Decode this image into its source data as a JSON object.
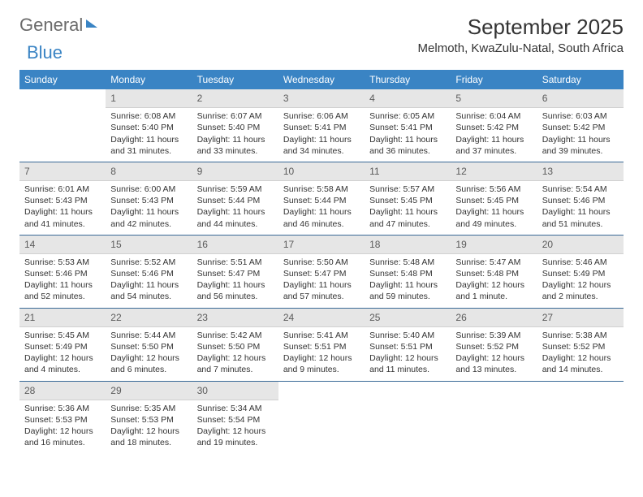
{
  "colors": {
    "brand_blue": "#3a84c4",
    "header_text": "#6b6b6b",
    "daynum_bg": "#e6e6e6",
    "daynum_text": "#5b5b5b",
    "week_divider": "#3a6a97",
    "body_text": "#333333",
    "background": "#ffffff"
  },
  "typography": {
    "title_fontsize_pt": 20,
    "location_fontsize_pt": 12,
    "th_fontsize_pt": 9,
    "cell_fontsize_pt": 8
  },
  "logo": {
    "word1": "General",
    "word2": "Blue"
  },
  "title": "September 2025",
  "location": "Melmoth, KwaZulu-Natal, South Africa",
  "weekdays": [
    "Sunday",
    "Monday",
    "Tuesday",
    "Wednesday",
    "Thursday",
    "Friday",
    "Saturday"
  ],
  "weeks": [
    [
      null,
      {
        "n": "1",
        "sunrise": "Sunrise: 6:08 AM",
        "sunset": "Sunset: 5:40 PM",
        "day1": "Daylight: 11 hours",
        "day2": "and 31 minutes."
      },
      {
        "n": "2",
        "sunrise": "Sunrise: 6:07 AM",
        "sunset": "Sunset: 5:40 PM",
        "day1": "Daylight: 11 hours",
        "day2": "and 33 minutes."
      },
      {
        "n": "3",
        "sunrise": "Sunrise: 6:06 AM",
        "sunset": "Sunset: 5:41 PM",
        "day1": "Daylight: 11 hours",
        "day2": "and 34 minutes."
      },
      {
        "n": "4",
        "sunrise": "Sunrise: 6:05 AM",
        "sunset": "Sunset: 5:41 PM",
        "day1": "Daylight: 11 hours",
        "day2": "and 36 minutes."
      },
      {
        "n": "5",
        "sunrise": "Sunrise: 6:04 AM",
        "sunset": "Sunset: 5:42 PM",
        "day1": "Daylight: 11 hours",
        "day2": "and 37 minutes."
      },
      {
        "n": "6",
        "sunrise": "Sunrise: 6:03 AM",
        "sunset": "Sunset: 5:42 PM",
        "day1": "Daylight: 11 hours",
        "day2": "and 39 minutes."
      }
    ],
    [
      {
        "n": "7",
        "sunrise": "Sunrise: 6:01 AM",
        "sunset": "Sunset: 5:43 PM",
        "day1": "Daylight: 11 hours",
        "day2": "and 41 minutes."
      },
      {
        "n": "8",
        "sunrise": "Sunrise: 6:00 AM",
        "sunset": "Sunset: 5:43 PM",
        "day1": "Daylight: 11 hours",
        "day2": "and 42 minutes."
      },
      {
        "n": "9",
        "sunrise": "Sunrise: 5:59 AM",
        "sunset": "Sunset: 5:44 PM",
        "day1": "Daylight: 11 hours",
        "day2": "and 44 minutes."
      },
      {
        "n": "10",
        "sunrise": "Sunrise: 5:58 AM",
        "sunset": "Sunset: 5:44 PM",
        "day1": "Daylight: 11 hours",
        "day2": "and 46 minutes."
      },
      {
        "n": "11",
        "sunrise": "Sunrise: 5:57 AM",
        "sunset": "Sunset: 5:45 PM",
        "day1": "Daylight: 11 hours",
        "day2": "and 47 minutes."
      },
      {
        "n": "12",
        "sunrise": "Sunrise: 5:56 AM",
        "sunset": "Sunset: 5:45 PM",
        "day1": "Daylight: 11 hours",
        "day2": "and 49 minutes."
      },
      {
        "n": "13",
        "sunrise": "Sunrise: 5:54 AM",
        "sunset": "Sunset: 5:46 PM",
        "day1": "Daylight: 11 hours",
        "day2": "and 51 minutes."
      }
    ],
    [
      {
        "n": "14",
        "sunrise": "Sunrise: 5:53 AM",
        "sunset": "Sunset: 5:46 PM",
        "day1": "Daylight: 11 hours",
        "day2": "and 52 minutes."
      },
      {
        "n": "15",
        "sunrise": "Sunrise: 5:52 AM",
        "sunset": "Sunset: 5:46 PM",
        "day1": "Daylight: 11 hours",
        "day2": "and 54 minutes."
      },
      {
        "n": "16",
        "sunrise": "Sunrise: 5:51 AM",
        "sunset": "Sunset: 5:47 PM",
        "day1": "Daylight: 11 hours",
        "day2": "and 56 minutes."
      },
      {
        "n": "17",
        "sunrise": "Sunrise: 5:50 AM",
        "sunset": "Sunset: 5:47 PM",
        "day1": "Daylight: 11 hours",
        "day2": "and 57 minutes."
      },
      {
        "n": "18",
        "sunrise": "Sunrise: 5:48 AM",
        "sunset": "Sunset: 5:48 PM",
        "day1": "Daylight: 11 hours",
        "day2": "and 59 minutes."
      },
      {
        "n": "19",
        "sunrise": "Sunrise: 5:47 AM",
        "sunset": "Sunset: 5:48 PM",
        "day1": "Daylight: 12 hours",
        "day2": "and 1 minute."
      },
      {
        "n": "20",
        "sunrise": "Sunrise: 5:46 AM",
        "sunset": "Sunset: 5:49 PM",
        "day1": "Daylight: 12 hours",
        "day2": "and 2 minutes."
      }
    ],
    [
      {
        "n": "21",
        "sunrise": "Sunrise: 5:45 AM",
        "sunset": "Sunset: 5:49 PM",
        "day1": "Daylight: 12 hours",
        "day2": "and 4 minutes."
      },
      {
        "n": "22",
        "sunrise": "Sunrise: 5:44 AM",
        "sunset": "Sunset: 5:50 PM",
        "day1": "Daylight: 12 hours",
        "day2": "and 6 minutes."
      },
      {
        "n": "23",
        "sunrise": "Sunrise: 5:42 AM",
        "sunset": "Sunset: 5:50 PM",
        "day1": "Daylight: 12 hours",
        "day2": "and 7 minutes."
      },
      {
        "n": "24",
        "sunrise": "Sunrise: 5:41 AM",
        "sunset": "Sunset: 5:51 PM",
        "day1": "Daylight: 12 hours",
        "day2": "and 9 minutes."
      },
      {
        "n": "25",
        "sunrise": "Sunrise: 5:40 AM",
        "sunset": "Sunset: 5:51 PM",
        "day1": "Daylight: 12 hours",
        "day2": "and 11 minutes."
      },
      {
        "n": "26",
        "sunrise": "Sunrise: 5:39 AM",
        "sunset": "Sunset: 5:52 PM",
        "day1": "Daylight: 12 hours",
        "day2": "and 13 minutes."
      },
      {
        "n": "27",
        "sunrise": "Sunrise: 5:38 AM",
        "sunset": "Sunset: 5:52 PM",
        "day1": "Daylight: 12 hours",
        "day2": "and 14 minutes."
      }
    ],
    [
      {
        "n": "28",
        "sunrise": "Sunrise: 5:36 AM",
        "sunset": "Sunset: 5:53 PM",
        "day1": "Daylight: 12 hours",
        "day2": "and 16 minutes."
      },
      {
        "n": "29",
        "sunrise": "Sunrise: 5:35 AM",
        "sunset": "Sunset: 5:53 PM",
        "day1": "Daylight: 12 hours",
        "day2": "and 18 minutes."
      },
      {
        "n": "30",
        "sunrise": "Sunrise: 5:34 AM",
        "sunset": "Sunset: 5:54 PM",
        "day1": "Daylight: 12 hours",
        "day2": "and 19 minutes."
      },
      null,
      null,
      null,
      null
    ]
  ]
}
